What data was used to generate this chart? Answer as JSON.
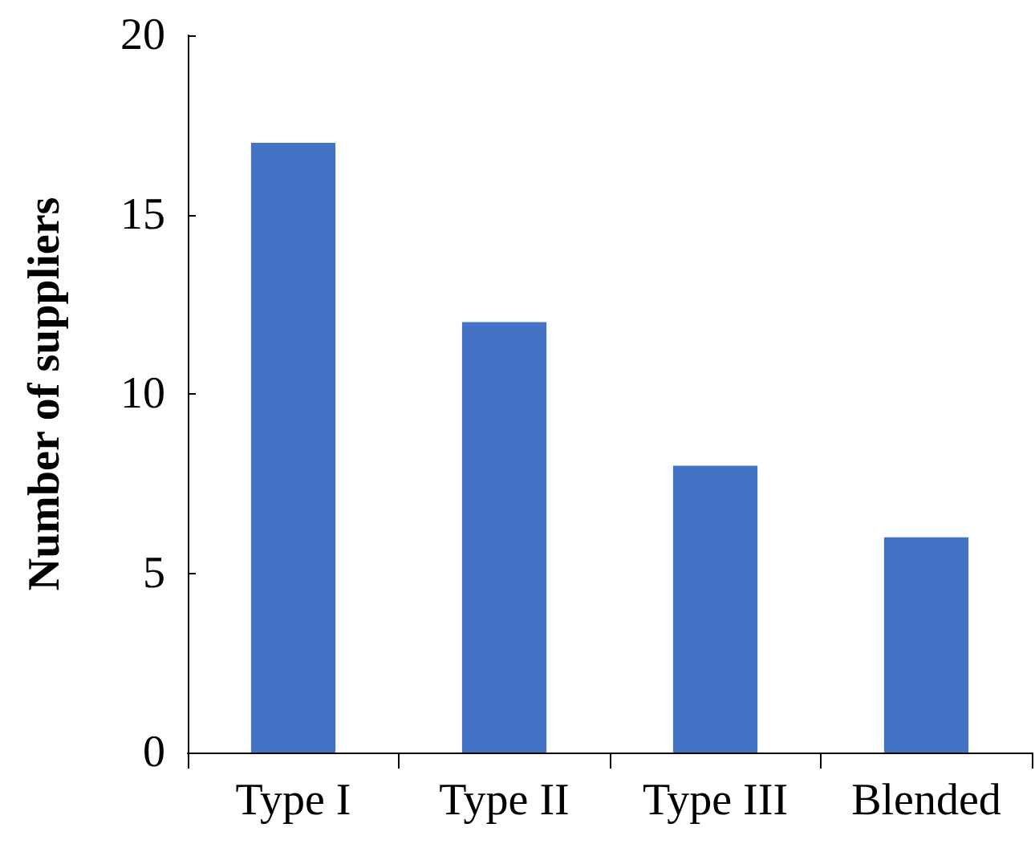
{
  "chart_data": {
    "type": "bar",
    "ylabel": "Number of suppliers",
    "categories": [
      "Type I",
      "Type II",
      "Type III",
      "Blended"
    ],
    "values": [
      17,
      12,
      8,
      6
    ],
    "color": "#4472c4",
    "ylim": [
      0,
      20
    ],
    "yticks": [
      0,
      5,
      10,
      15,
      20
    ],
    "grid": false
  }
}
